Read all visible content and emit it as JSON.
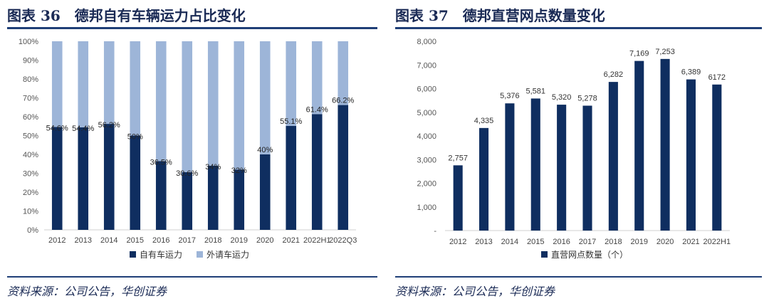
{
  "left": {
    "title": "图表 36　德邦自有车辆运力占比变化",
    "source": "资料来源：公司公告，华创证券",
    "chart_data": {
      "type": "bar",
      "stacked": true,
      "categories": [
        "2012",
        "2013",
        "2014",
        "2015",
        "2016",
        "2017",
        "2018",
        "2019",
        "2020",
        "2021",
        "2022H1",
        "2022Q3"
      ],
      "series": [
        {
          "name": "自有车运力",
          "values": [
            54.6,
            54.4,
            56.2,
            50,
            36.5,
            30.6,
            34,
            32,
            40,
            55.1,
            61.4,
            66.2
          ],
          "color": "#0f2e60"
        },
        {
          "name": "外请车运力",
          "values": [
            45.4,
            45.6,
            43.8,
            50,
            63.5,
            69.4,
            66,
            68,
            60,
            44.9,
            38.6,
            33.8
          ],
          "color": "#9db5d8"
        }
      ],
      "data_labels": [
        "54.6%",
        "54.4%",
        "56.2%",
        "50%",
        "36.5%",
        "30.6%",
        "34%",
        "32%",
        "40%",
        "55.1%",
        "61.4%",
        "66.2%"
      ],
      "yticks": [
        "0%",
        "10%",
        "20%",
        "30%",
        "40%",
        "50%",
        "60%",
        "70%",
        "80%",
        "90%",
        "100%"
      ],
      "ylim": [
        0,
        100
      ],
      "legend": "bottom"
    }
  },
  "right": {
    "title": "图表 37　德邦直营网点数量变化",
    "source": "资料来源：公司公告，华创证券",
    "chart_data": {
      "type": "bar",
      "categories": [
        "2012",
        "2013",
        "2014",
        "2015",
        "2016",
        "2017",
        "2018",
        "2019",
        "2020",
        "2021",
        "2022H1"
      ],
      "series": [
        {
          "name": "直营网点数量（个）",
          "values": [
            2757,
            4335,
            5376,
            5581,
            5320,
            5278,
            6282,
            7169,
            7253,
            6389,
            6172
          ],
          "color": "#0f2e60"
        }
      ],
      "data_labels": [
        "2,757",
        "4,335",
        "5,376",
        "5,581",
        "5,320",
        "5,278",
        "6,282",
        "7,169",
        "7,253",
        "6,389",
        "6172"
      ],
      "yticks": [
        "-",
        "1,000",
        "2,000",
        "3,000",
        "4,000",
        "5,000",
        "6,000",
        "7,000",
        "8,000"
      ],
      "ylim": [
        0,
        8000
      ],
      "legend": "bottom"
    }
  }
}
